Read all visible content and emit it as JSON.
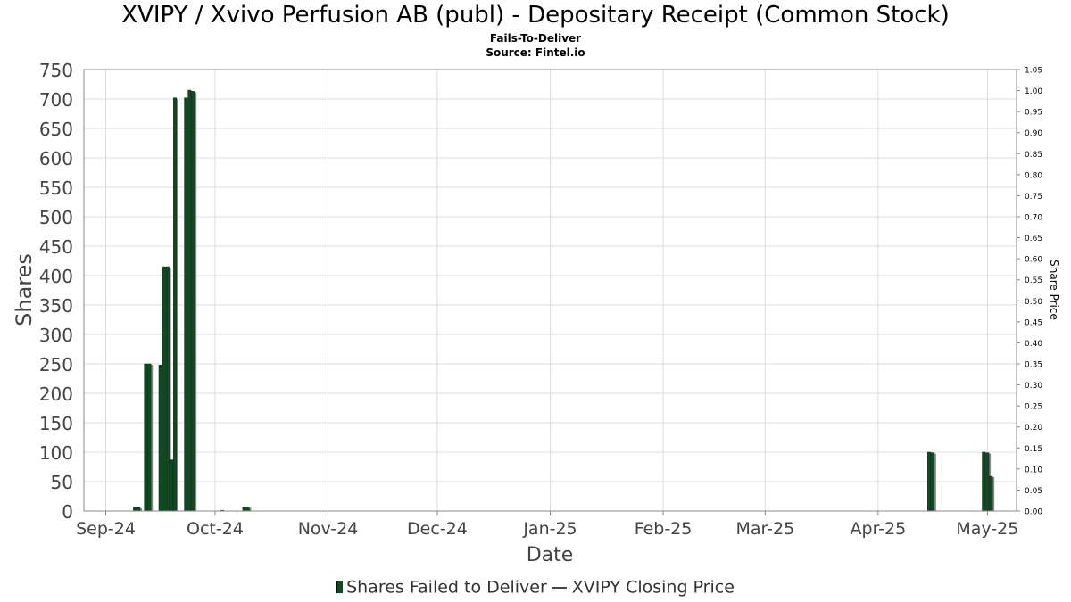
{
  "header": {
    "title": "XVIPY / Xvivo Perfusion AB (publ) - Depositary Receipt (Common Stock)",
    "subtitle": "Fails-To-Deliver",
    "source": "Source: Fintel.io"
  },
  "legend": {
    "bar_label": "Shares Failed to Deliver",
    "line_label": "XVIPY Closing Price"
  },
  "colors": {
    "bar": "#0f4b22",
    "bar_shadow": "#888888",
    "grid": "#dcdcdc",
    "axis_text": "#444444"
  },
  "chart_data": {
    "type": "bar",
    "xlabel": "Date",
    "ylabel": "Shares",
    "y2label": "Share Price",
    "ylim": [
      0,
      750
    ],
    "y2lim": [
      0,
      1.05
    ],
    "xlim": [
      "2024-08-26",
      "2025-05-09"
    ],
    "grid": true,
    "legend_placement": "bottom",
    "yticks": [
      0,
      50,
      100,
      150,
      200,
      250,
      300,
      350,
      400,
      450,
      500,
      550,
      600,
      650,
      700,
      750
    ],
    "y2ticks": [
      "0.00",
      "0.05",
      "0.10",
      "0.15",
      "0.20",
      "0.25",
      "0.30",
      "0.35",
      "0.40",
      "0.45",
      "0.50",
      "0.55",
      "0.60",
      "0.65",
      "0.70",
      "0.75",
      "0.80",
      "0.85",
      "0.90",
      "0.95",
      "1.00",
      "1.05"
    ],
    "xticks": [
      {
        "date": "2024-09-01",
        "label": "Sep-24"
      },
      {
        "date": "2024-10-01",
        "label": "Oct-24"
      },
      {
        "date": "2024-11-01",
        "label": "Nov-24"
      },
      {
        "date": "2024-12-01",
        "label": "Dec-24"
      },
      {
        "date": "2025-01-01",
        "label": "Jan-25"
      },
      {
        "date": "2025-02-01",
        "label": "Feb-25"
      },
      {
        "date": "2025-03-01",
        "label": "Mar-25"
      },
      {
        "date": "2025-04-01",
        "label": "Apr-25"
      },
      {
        "date": "2025-05-01",
        "label": "May-25"
      }
    ],
    "series": [
      {
        "name": "Shares Failed to Deliver",
        "points": [
          {
            "date": "2024-09-09",
            "value": 7
          },
          {
            "date": "2024-09-10",
            "value": 6
          },
          {
            "date": "2024-09-12",
            "value": 250
          },
          {
            "date": "2024-09-13",
            "value": 250
          },
          {
            "date": "2024-09-16",
            "value": 248
          },
          {
            "date": "2024-09-17",
            "value": 415
          },
          {
            "date": "2024-09-18",
            "value": 415
          },
          {
            "date": "2024-09-19",
            "value": 87
          },
          {
            "date": "2024-09-20",
            "value": 702
          },
          {
            "date": "2024-09-23",
            "value": 702
          },
          {
            "date": "2024-09-24",
            "value": 715
          },
          {
            "date": "2024-09-25",
            "value": 713
          },
          {
            "date": "2024-10-03",
            "value": 1
          },
          {
            "date": "2024-10-09",
            "value": 7
          },
          {
            "date": "2024-10-10",
            "value": 7
          },
          {
            "date": "2025-04-15",
            "value": 100
          },
          {
            "date": "2025-04-16",
            "value": 99
          },
          {
            "date": "2025-04-30",
            "value": 100
          },
          {
            "date": "2025-05-01",
            "value": 99
          },
          {
            "date": "2025-05-02",
            "value": 59
          }
        ]
      },
      {
        "name": "XVIPY Closing Price",
        "points": []
      }
    ]
  }
}
